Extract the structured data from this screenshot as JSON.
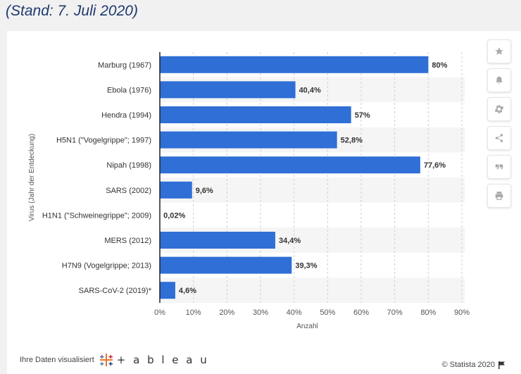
{
  "header": {
    "subtitle": "(Stand: 7. Juli 2020)"
  },
  "chart_data": {
    "type": "bar",
    "orientation": "horizontal",
    "categories": [
      "Marburg (1967)",
      "Ebola (1976)",
      "Hendra (1994)",
      "H5N1 (\"Vogelgrippe\"; 1997)",
      "Nipah (1998)",
      "SARS (2002)",
      "H1N1 (\"Schweinegrippe\"; 2009)",
      "MERS (2012)",
      "H7N9 (Vogelgrippe; 2013)",
      "SARS-CoV-2 (2019)*"
    ],
    "values": [
      80,
      40.4,
      57,
      52.8,
      77.6,
      9.6,
      0.02,
      34.4,
      39.3,
      4.6
    ],
    "value_labels": [
      "80%",
      "40,4%",
      "57%",
      "52,8%",
      "77,6%",
      "9,6%",
      "0,02%",
      "34,4%",
      "39,3%",
      "4,6%"
    ],
    "xlim": [
      0,
      90
    ],
    "xticks": [
      0,
      10,
      20,
      30,
      40,
      50,
      60,
      70,
      80,
      90
    ],
    "xtick_labels": [
      "0%",
      "10%",
      "20%",
      "30%",
      "40%",
      "50%",
      "60%",
      "70%",
      "80%",
      "90%"
    ],
    "xlabel": "Anzahl",
    "ylabel": "Virus (Jahr der Entdeckung)",
    "bar_color": "#2f6fd6",
    "grid": "vertical dashed",
    "row_shading": "alternating"
  },
  "toolbar": {
    "items": [
      {
        "icon": "star-icon"
      },
      {
        "icon": "bell-icon"
      },
      {
        "icon": "gear-icon"
      },
      {
        "icon": "share-icon"
      },
      {
        "icon": "quote-icon"
      },
      {
        "icon": "print-icon"
      }
    ]
  },
  "footer": {
    "visualized_by": "Ihre Daten visualisiert",
    "brand": "+ a b l e a u",
    "copyright": "© Statista 2020"
  }
}
